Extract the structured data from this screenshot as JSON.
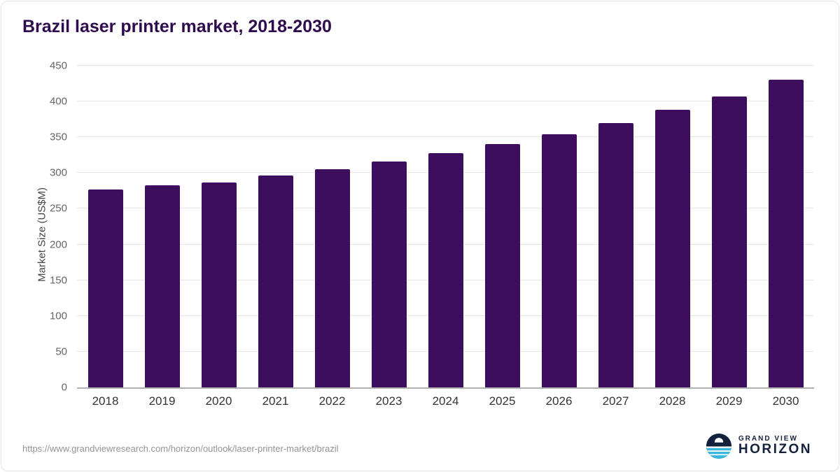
{
  "chart_data": {
    "type": "bar",
    "title": "Brazil laser printer market, 2018-2030",
    "categories": [
      "2018",
      "2019",
      "2020",
      "2021",
      "2022",
      "2023",
      "2024",
      "2025",
      "2026",
      "2027",
      "2028",
      "2029",
      "2030"
    ],
    "values": [
      277,
      283,
      287,
      296,
      305,
      316,
      328,
      340,
      354,
      370,
      388,
      407,
      430
    ],
    "xlabel": "",
    "ylabel": "Market Size (US$M)",
    "ylim": [
      0,
      450
    ],
    "yticks": [
      0,
      50,
      100,
      150,
      200,
      250,
      300,
      350,
      400,
      450
    ],
    "grid": true,
    "legend": "none",
    "bar_color": "#3d0d5e"
  },
  "colors": {
    "title": "#2e0a4e",
    "bar": "#3d0d5e",
    "brand_navy": "#14213d",
    "brand_cyan": "#38b6dd"
  },
  "footer": {
    "source_url": "https://www.grandviewresearch.com/horizon/outlook/laser-printer-market/brazil",
    "brand_line1": "GRAND VIEW",
    "brand_line2": "HORIZON"
  }
}
